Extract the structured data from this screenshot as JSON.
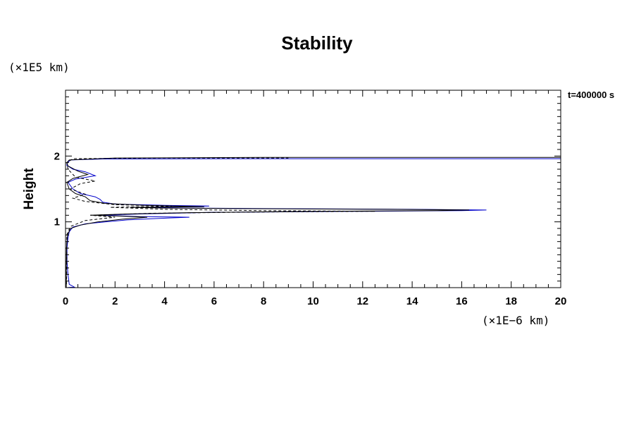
{
  "chart_data": {
    "type": "line",
    "title": "Stability",
    "ylabel": "Height",
    "y_unit_label": "(×1E5 km)",
    "x_unit_label": "(×1E−6 km)",
    "annotation": "t=400000 s",
    "xlim": [
      0,
      20
    ],
    "ylim": [
      0,
      3
    ],
    "x_ticks": [
      "0",
      "2",
      "4",
      "6",
      "8",
      "10",
      "12",
      "14",
      "16",
      "18",
      "20"
    ],
    "y_ticks": [
      "1",
      "2"
    ],
    "grid": false,
    "series": [
      {
        "color": "#0000cc",
        "style": "solid",
        "points": [
          [
            0.05,
            0.0
          ],
          [
            0.35,
            0.01
          ],
          [
            0.15,
            0.05
          ],
          [
            0.1,
            0.2
          ],
          [
            0.06,
            0.4
          ],
          [
            0.06,
            0.6
          ],
          [
            0.1,
            0.75
          ],
          [
            0.15,
            0.85
          ],
          [
            0.3,
            0.92
          ],
          [
            0.8,
            0.97
          ],
          [
            1.6,
            1.0
          ],
          [
            2.5,
            1.03
          ],
          [
            4.2,
            1.06
          ],
          [
            5.0,
            1.07
          ],
          [
            3.0,
            1.08
          ],
          [
            1.5,
            1.1
          ],
          [
            3.0,
            1.12
          ],
          [
            6.0,
            1.145
          ],
          [
            12.0,
            1.16
          ],
          [
            16.0,
            1.17
          ],
          [
            17.0,
            1.18
          ],
          [
            14.0,
            1.19
          ],
          [
            9.0,
            1.2
          ],
          [
            5.0,
            1.21
          ],
          [
            3.0,
            1.22
          ],
          [
            5.8,
            1.24
          ],
          [
            4.0,
            1.25
          ],
          [
            2.0,
            1.27
          ],
          [
            1.5,
            1.3
          ],
          [
            1.4,
            1.34
          ],
          [
            1.2,
            1.38
          ],
          [
            0.6,
            1.43
          ],
          [
            0.3,
            1.5
          ],
          [
            0.1,
            1.6
          ],
          [
            0.4,
            1.65
          ],
          [
            1.2,
            1.7
          ],
          [
            0.8,
            1.76
          ],
          [
            0.3,
            1.8
          ],
          [
            0.05,
            1.86
          ],
          [
            0.08,
            1.9
          ],
          [
            0.2,
            1.94
          ],
          [
            1.5,
            1.955
          ],
          [
            6.5,
            1.96
          ],
          [
            10,
            1.96
          ],
          [
            17.0,
            1.96
          ],
          [
            20.0,
            1.96
          ]
        ]
      },
      {
        "color": "#000000",
        "style": "solid",
        "points": [
          [
            0.03,
            0.0
          ],
          [
            0.03,
            0.3
          ],
          [
            0.04,
            0.6
          ],
          [
            0.08,
            0.8
          ],
          [
            0.2,
            0.9
          ],
          [
            0.6,
            0.95
          ],
          [
            1.3,
            1.0
          ],
          [
            2.3,
            1.04
          ],
          [
            3.3,
            1.07
          ],
          [
            2.0,
            1.09
          ],
          [
            1.0,
            1.1
          ],
          [
            2.5,
            1.12
          ],
          [
            5.0,
            1.14
          ],
          [
            10.0,
            1.16
          ],
          [
            15.0,
            1.17
          ],
          [
            16.3,
            1.18
          ],
          [
            13.0,
            1.19
          ],
          [
            7.5,
            1.2
          ],
          [
            4.0,
            1.21
          ],
          [
            2.6,
            1.22
          ],
          [
            5.6,
            1.23
          ],
          [
            3.2,
            1.25
          ],
          [
            1.6,
            1.28
          ],
          [
            1.0,
            1.32
          ],
          [
            0.8,
            1.38
          ],
          [
            0.4,
            1.43
          ],
          [
            0.15,
            1.5
          ],
          [
            0.05,
            1.6
          ],
          [
            0.3,
            1.66
          ],
          [
            0.9,
            1.72
          ],
          [
            0.5,
            1.77
          ],
          [
            0.1,
            1.85
          ],
          [
            0.05,
            1.9
          ],
          [
            0.15,
            1.94
          ],
          [
            2.0,
            1.97
          ],
          [
            8.0,
            1.98
          ],
          [
            14.0,
            1.98
          ],
          [
            20.0,
            1.98
          ]
        ]
      },
      {
        "color": "#000000",
        "style": "dashed",
        "points": [
          [
            0.04,
            0.05
          ],
          [
            0.05,
            0.4
          ],
          [
            0.05,
            0.8
          ],
          [
            0.2,
            0.93
          ],
          [
            0.8,
            1.02
          ],
          [
            2.0,
            1.07
          ],
          [
            1.0,
            1.1
          ],
          [
            3.5,
            1.13
          ],
          [
            8.0,
            1.15
          ],
          [
            12.5,
            1.16
          ],
          [
            8.0,
            1.17
          ],
          [
            4.0,
            1.19
          ],
          [
            1.8,
            1.22
          ],
          [
            4.3,
            1.24
          ],
          [
            2.0,
            1.26
          ],
          [
            0.8,
            1.31
          ],
          [
            0.3,
            1.36
          ],
          [
            0.8,
            1.42
          ],
          [
            0.2,
            1.5
          ],
          [
            0.6,
            1.58
          ],
          [
            1.2,
            1.62
          ],
          [
            0.4,
            1.68
          ],
          [
            0.1,
            1.8
          ],
          [
            0.05,
            1.9
          ],
          [
            0.3,
            1.96
          ],
          [
            4.0,
            1.97
          ],
          [
            6.0,
            1.97
          ],
          [
            9.0,
            1.97
          ]
        ]
      },
      {
        "color": "#000000",
        "style": "dashed",
        "points": [
          [
            0.0,
            0.0
          ],
          [
            19.0,
            0.0
          ],
          [
            20.0,
            0.0
          ]
        ]
      }
    ]
  }
}
